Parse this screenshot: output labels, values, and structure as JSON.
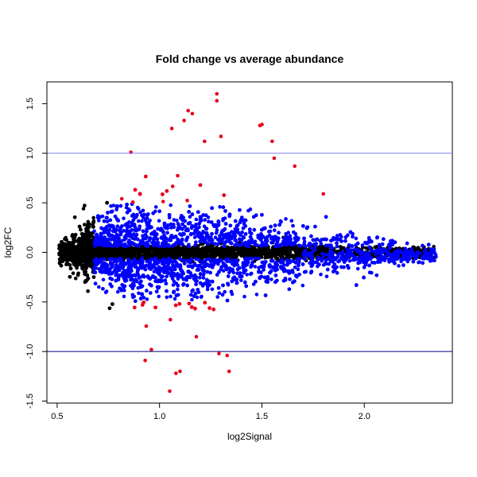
{
  "chart_data": {
    "type": "scatter",
    "title": "Fold change vs average abundance",
    "xlabel": "log2Signal",
    "ylabel": "log2FC",
    "xlim": [
      0.45,
      2.43
    ],
    "ylim": [
      -1.52,
      1.72
    ],
    "x_ticks": [
      0.5,
      1.0,
      1.5,
      2.0
    ],
    "x_tick_labels": [
      "0.5",
      "1.0",
      "1.5",
      "2.0"
    ],
    "y_ticks": [
      -1.5,
      -1.0,
      -0.5,
      0.0,
      0.5,
      1.0,
      1.5
    ],
    "y_tick_labels": [
      "-1.5",
      "-1.0",
      "-0.5",
      "0.0",
      "0.5",
      "1.0",
      "1.5"
    ],
    "grid": false,
    "reference_lines": [
      {
        "y": 1.0,
        "color": "#8080ff"
      },
      {
        "y": -1.0,
        "color": "#000080"
      }
    ],
    "colors": {
      "black": "#000000",
      "blue": "#0000ff",
      "red": "#e8001c"
    },
    "highlighted_points": [
      {
        "x": 1.28,
        "y": 1.6
      },
      {
        "x": 1.28,
        "y": 1.53
      },
      {
        "x": 1.14,
        "y": 1.43
      },
      {
        "x": 1.16,
        "y": 1.4
      },
      {
        "x": 1.5,
        "y": 1.29
      },
      {
        "x": 1.49,
        "y": 1.28
      },
      {
        "x": 1.12,
        "y": 1.33
      },
      {
        "x": 1.06,
        "y": 1.25
      },
      {
        "x": 1.3,
        "y": 1.17
      },
      {
        "x": 1.22,
        "y": 1.12
      },
      {
        "x": 1.55,
        "y": 1.12
      },
      {
        "x": 0.86,
        "y": 1.01
      },
      {
        "x": 1.56,
        "y": 0.95
      },
      {
        "x": 1.66,
        "y": 0.87
      },
      {
        "x": 1.8,
        "y": 0.59
      },
      {
        "x": 0.93,
        "y": -1.09
      },
      {
        "x": 1.33,
        "y": -1.04
      },
      {
        "x": 1.1,
        "y": -1.2
      },
      {
        "x": 1.08,
        "y": -1.22
      },
      {
        "x": 1.34,
        "y": -1.2
      },
      {
        "x": 1.05,
        "y": -1.4
      },
      {
        "x": 1.29,
        "y": -1.02
      },
      {
        "x": 1.18,
        "y": -0.85
      },
      {
        "x": 0.96,
        "y": -0.98
      }
    ]
  }
}
